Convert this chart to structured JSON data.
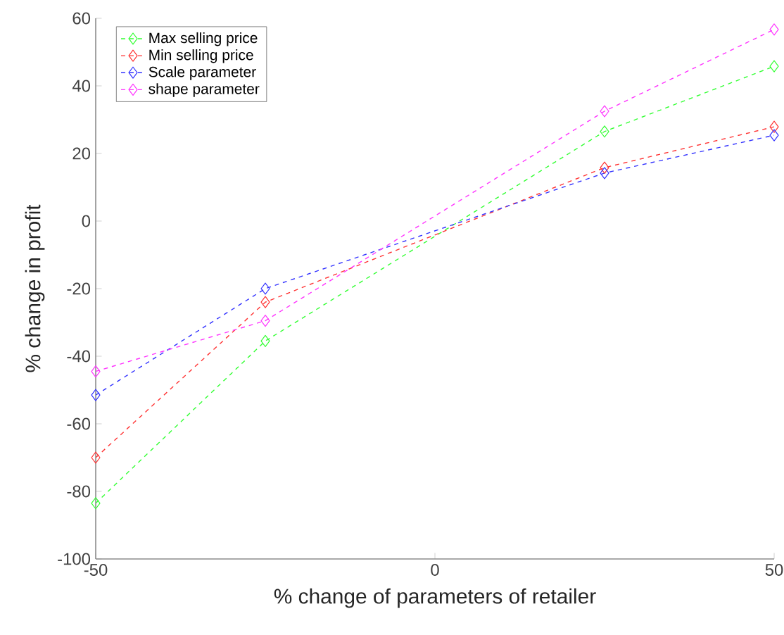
{
  "chart_data": {
    "type": "line",
    "xlabel": "% change of parameters of retailer",
    "ylabel": "% change in profit",
    "x": [
      -50,
      -25,
      25,
      50
    ],
    "xlim": [
      -50,
      50
    ],
    "xticks": [
      -50,
      0,
      50
    ],
    "ylim": [
      -100,
      60
    ],
    "yticks": [
      -100,
      -80,
      -60,
      -40,
      -20,
      0,
      20,
      40,
      60
    ],
    "grid": false,
    "legend": "top left",
    "marker": "diamond",
    "line_style": "dashed",
    "series": [
      {
        "name": "Max selling price",
        "color": "#33ff33",
        "values": [
          -83.5,
          -35.5,
          26.5,
          45.8
        ]
      },
      {
        "name": "Min selling price",
        "color": "#ff3333",
        "values": [
          -70,
          -24,
          15.8,
          27.9
        ]
      },
      {
        "name": "Scale parameter",
        "color": "#3333ff",
        "values": [
          -51.5,
          -20,
          14.2,
          25.4
        ]
      },
      {
        "name": "shape parameter",
        "color": "#ff33ff",
        "values": [
          -44.5,
          -29.5,
          32.5,
          56.7
        ]
      }
    ]
  }
}
